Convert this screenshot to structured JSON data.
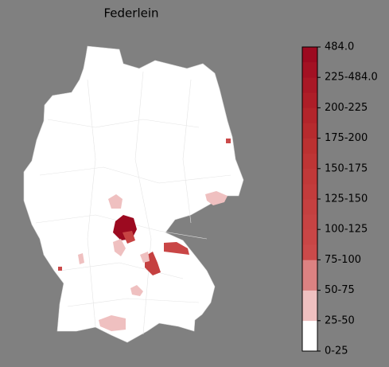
{
  "map": {
    "title": "Federlein",
    "colorbar": {
      "labels": [
        "0-25",
        "25-50",
        "50-75",
        "75-100",
        "100-125",
        "125-150",
        "150-175",
        "175-200",
        "200-225",
        "225-484.0",
        "484.0"
      ],
      "colors": [
        "#ffffff",
        "#ffffff",
        "#efc0c0",
        "#efc0c0",
        "#dc8282",
        "#dc8282",
        "#cb4a4a",
        "#c94646",
        "#c74343",
        "#c54040",
        "#c33c3c",
        "#c13939",
        "#be3535",
        "#bb3131",
        "#b72b2e",
        "#b3252b",
        "#ae1e28",
        "#a91826",
        "#a31123",
        "#9c0a20"
      ]
    }
  }
}
